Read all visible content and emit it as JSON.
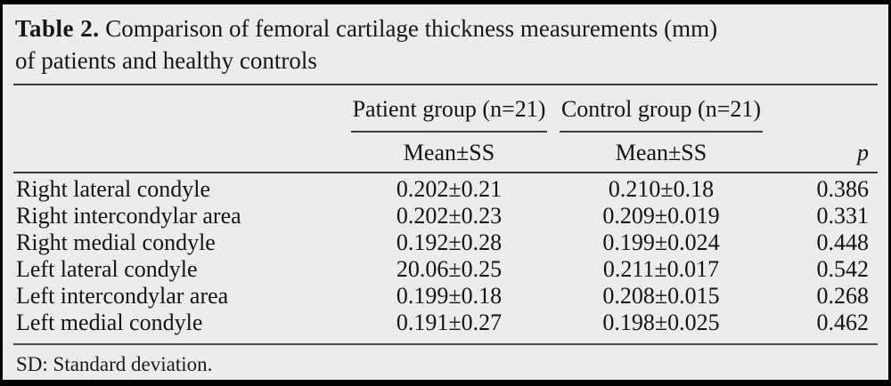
{
  "table": {
    "title": {
      "bold": "Table 2.",
      "line1_rest": "Comparison of femoral cartilage thickness measurements (mm)",
      "line2": "of patients and healthy controls"
    },
    "group_headers": {
      "patient": "Patient group (n=21)",
      "control": "Control group (n=21)"
    },
    "sub_headers": {
      "patient_mean": "Mean±SS",
      "control_mean": "Mean±SS",
      "p": "p"
    },
    "rows": [
      {
        "label": "Right lateral condyle",
        "patient": "0.202±0.21",
        "control": "0.210±0.18",
        "p": "0.386"
      },
      {
        "label": "Right intercondylar area",
        "patient": "0.202±0.23",
        "control": "0.209±0.019",
        "p": "0.331"
      },
      {
        "label": "Right medial condyle",
        "patient": "0.192±0.28",
        "control": "0.199±0.024",
        "p": "0.448"
      },
      {
        "label": "Left lateral condyle",
        "patient": "20.06±0.25",
        "control": "0.211±0.017",
        "p": "0.542"
      },
      {
        "label": "Left intercondylar area",
        "patient": "0.199±0.18",
        "control": "0.208±0.015",
        "p": "0.268"
      },
      {
        "label": "Left medial condyle",
        "patient": "0.191±0.27",
        "control": "0.198±0.025",
        "p": "0.462"
      }
    ],
    "footnote": "SD: Standard deviation.",
    "colors": {
      "background": "#ececec",
      "border": "#000000",
      "rule": "#3a3a3a",
      "text": "#141414"
    }
  }
}
